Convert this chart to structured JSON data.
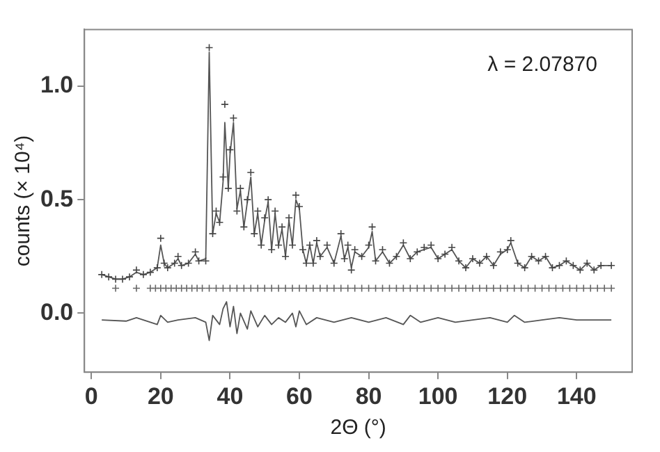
{
  "chart_data": {
    "type": "scatter",
    "xlabel": "2Θ (°)",
    "ylabel": "counts (× 10⁴)",
    "annotations": [
      "λ = 2.07870"
    ],
    "xlim": [
      -2,
      156
    ],
    "xticks": [
      0,
      20,
      40,
      60,
      80,
      100,
      120,
      140
    ],
    "ylim": [
      -0.26,
      1.25
    ],
    "yticks": [
      {
        "value": 0,
        "label": "0.0"
      },
      {
        "value": 0.5,
        "label": "0.5"
      },
      {
        "value": 1,
        "label": "1.0"
      }
    ],
    "grid": false,
    "legend": false,
    "series": [
      {
        "marker": "cross",
        "color": "#444444",
        "x": [
          3,
          5,
          7,
          9,
          11,
          13,
          15,
          17,
          19,
          20,
          21,
          22,
          24,
          25,
          26,
          28,
          30,
          31,
          33,
          34,
          35,
          36,
          37,
          38,
          38.5,
          39.5,
          40,
          41,
          42,
          43,
          44,
          45,
          46,
          47,
          48,
          49,
          50,
          51,
          52,
          53,
          54,
          55,
          56,
          57,
          58,
          59,
          60,
          61,
          62,
          63,
          64,
          65,
          66,
          68,
          70,
          72,
          73,
          74,
          75,
          76,
          78,
          80,
          81,
          82,
          84,
          86,
          88,
          90,
          92,
          94,
          96,
          98,
          100,
          102,
          104,
          106,
          108,
          110,
          112,
          114,
          116,
          118,
          120,
          121,
          123,
          125,
          127,
          129,
          131,
          133,
          135,
          137,
          139,
          141,
          143,
          145,
          147,
          150
        ],
        "values": [
          0.17,
          0.16,
          0.15,
          0.15,
          0.16,
          0.19,
          0.17,
          0.18,
          0.2,
          0.33,
          0.22,
          0.2,
          0.22,
          0.25,
          0.21,
          0.22,
          0.27,
          0.23,
          0.23,
          1.17,
          0.35,
          0.45,
          0.4,
          0.6,
          0.92,
          0.55,
          0.72,
          0.86,
          0.45,
          0.55,
          0.38,
          0.5,
          0.62,
          0.35,
          0.45,
          0.3,
          0.42,
          0.5,
          0.28,
          0.45,
          0.3,
          0.38,
          0.25,
          0.42,
          0.3,
          0.52,
          0.47,
          0.28,
          0.22,
          0.3,
          0.22,
          0.32,
          0.25,
          0.3,
          0.22,
          0.35,
          0.24,
          0.3,
          0.19,
          0.28,
          0.25,
          0.3,
          0.38,
          0.23,
          0.28,
          0.22,
          0.25,
          0.31,
          0.24,
          0.27,
          0.29,
          0.3,
          0.24,
          0.26,
          0.29,
          0.23,
          0.2,
          0.24,
          0.22,
          0.25,
          0.21,
          0.27,
          0.28,
          0.32,
          0.22,
          0.2,
          0.25,
          0.23,
          0.25,
          0.2,
          0.21,
          0.23,
          0.21,
          0.19,
          0.22,
          0.19,
          0.21,
          0.21
        ]
      },
      {
        "type": "line",
        "marker": "none",
        "color": "#555555",
        "x": [
          3,
          5,
          7,
          9,
          11,
          13,
          15,
          17,
          19,
          20,
          21,
          22,
          24,
          25,
          26,
          28,
          30,
          31,
          33,
          34,
          35,
          36,
          37,
          38,
          38.5,
          39.5,
          40,
          41,
          42,
          43,
          44,
          45,
          46,
          47,
          48,
          49,
          50,
          51,
          52,
          53,
          54,
          55,
          56,
          57,
          58,
          59,
          60,
          61,
          62,
          63,
          64,
          65,
          66,
          68,
          70,
          72,
          73,
          74,
          75,
          76,
          78,
          80,
          81,
          82,
          84,
          86,
          88,
          90,
          92,
          94,
          96,
          98,
          100,
          102,
          104,
          106,
          108,
          110,
          112,
          114,
          116,
          118,
          120,
          121,
          123,
          125,
          127,
          129,
          131,
          133,
          135,
          137,
          139,
          141,
          143,
          145,
          147,
          150
        ],
        "values": [
          0.17,
          0.16,
          0.15,
          0.15,
          0.16,
          0.18,
          0.17,
          0.18,
          0.2,
          0.3,
          0.22,
          0.2,
          0.22,
          0.24,
          0.21,
          0.22,
          0.26,
          0.23,
          0.24,
          1.15,
          0.35,
          0.44,
          0.4,
          0.58,
          0.84,
          0.55,
          0.7,
          0.84,
          0.46,
          0.54,
          0.38,
          0.49,
          0.6,
          0.35,
          0.44,
          0.3,
          0.41,
          0.49,
          0.28,
          0.44,
          0.3,
          0.37,
          0.25,
          0.41,
          0.3,
          0.5,
          0.46,
          0.28,
          0.22,
          0.3,
          0.22,
          0.31,
          0.25,
          0.29,
          0.22,
          0.34,
          0.24,
          0.29,
          0.2,
          0.27,
          0.25,
          0.29,
          0.36,
          0.23,
          0.27,
          0.22,
          0.25,
          0.3,
          0.24,
          0.27,
          0.28,
          0.29,
          0.24,
          0.26,
          0.28,
          0.23,
          0.2,
          0.24,
          0.22,
          0.25,
          0.21,
          0.26,
          0.28,
          0.31,
          0.22,
          0.2,
          0.25,
          0.23,
          0.25,
          0.2,
          0.21,
          0.23,
          0.21,
          0.19,
          0.22,
          0.19,
          0.21,
          0.21
        ]
      },
      {
        "marker": "cross",
        "color": "#666666",
        "x": [
          7,
          13,
          17,
          18.5,
          20,
          21.5,
          23,
          24.5,
          26,
          27.5,
          29,
          30.5,
          32,
          34,
          36,
          38,
          40,
          42,
          44,
          46,
          48,
          50,
          52,
          54,
          56,
          58,
          60,
          62,
          64,
          66,
          68,
          70,
          72,
          74,
          76,
          78,
          80,
          82,
          84,
          86,
          88,
          90,
          92,
          94,
          96,
          98,
          100,
          102,
          104,
          106,
          108,
          110,
          112,
          114,
          116,
          118,
          120,
          122,
          124,
          126,
          128,
          130,
          132,
          134,
          136,
          138,
          140,
          142,
          144,
          146,
          148,
          150
        ],
        "values": [
          0.11,
          0.11,
          0.11,
          0.11,
          0.11,
          0.11,
          0.11,
          0.11,
          0.11,
          0.11,
          0.11,
          0.11,
          0.11,
          0.11,
          0.11,
          0.11,
          0.11,
          0.11,
          0.11,
          0.11,
          0.11,
          0.11,
          0.11,
          0.11,
          0.11,
          0.11,
          0.11,
          0.11,
          0.11,
          0.11,
          0.11,
          0.11,
          0.11,
          0.11,
          0.11,
          0.11,
          0.11,
          0.11,
          0.11,
          0.11,
          0.11,
          0.11,
          0.11,
          0.11,
          0.11,
          0.11,
          0.11,
          0.11,
          0.11,
          0.11,
          0.11,
          0.11,
          0.11,
          0.11,
          0.11,
          0.11,
          0.11,
          0.11,
          0.11,
          0.11,
          0.11,
          0.11,
          0.11,
          0.11,
          0.11,
          0.11,
          0.11,
          0.11,
          0.11,
          0.11,
          0.11,
          0.11
        ]
      },
      {
        "type": "line",
        "marker": "none",
        "color": "#555555",
        "x": [
          3,
          10,
          13,
          19,
          20,
          22,
          25,
          30,
          33,
          34,
          35,
          37,
          38,
          39,
          40,
          41,
          42,
          43,
          45,
          46,
          48,
          50,
          52,
          54,
          56,
          58,
          59,
          60,
          62,
          65,
          70,
          75,
          80,
          85,
          90,
          92,
          95,
          100,
          105,
          110,
          115,
          120,
          122,
          125,
          130,
          135,
          140,
          145,
          150
        ],
        "values": [
          -0.03,
          -0.035,
          -0.02,
          -0.05,
          -0.01,
          -0.04,
          -0.03,
          -0.02,
          -0.04,
          -0.12,
          -0.01,
          -0.05,
          0.02,
          0.05,
          -0.06,
          0.03,
          -0.09,
          0,
          -0.07,
          0.01,
          -0.06,
          -0.01,
          -0.05,
          -0.02,
          -0.04,
          0,
          -0.06,
          0.01,
          -0.05,
          -0.02,
          -0.04,
          -0.02,
          -0.04,
          -0.02,
          -0.05,
          -0.01,
          -0.04,
          -0.02,
          -0.04,
          -0.03,
          -0.02,
          -0.04,
          -0.01,
          -0.04,
          -0.03,
          -0.02,
          -0.03,
          -0.03,
          -0.03
        ]
      }
    ]
  }
}
